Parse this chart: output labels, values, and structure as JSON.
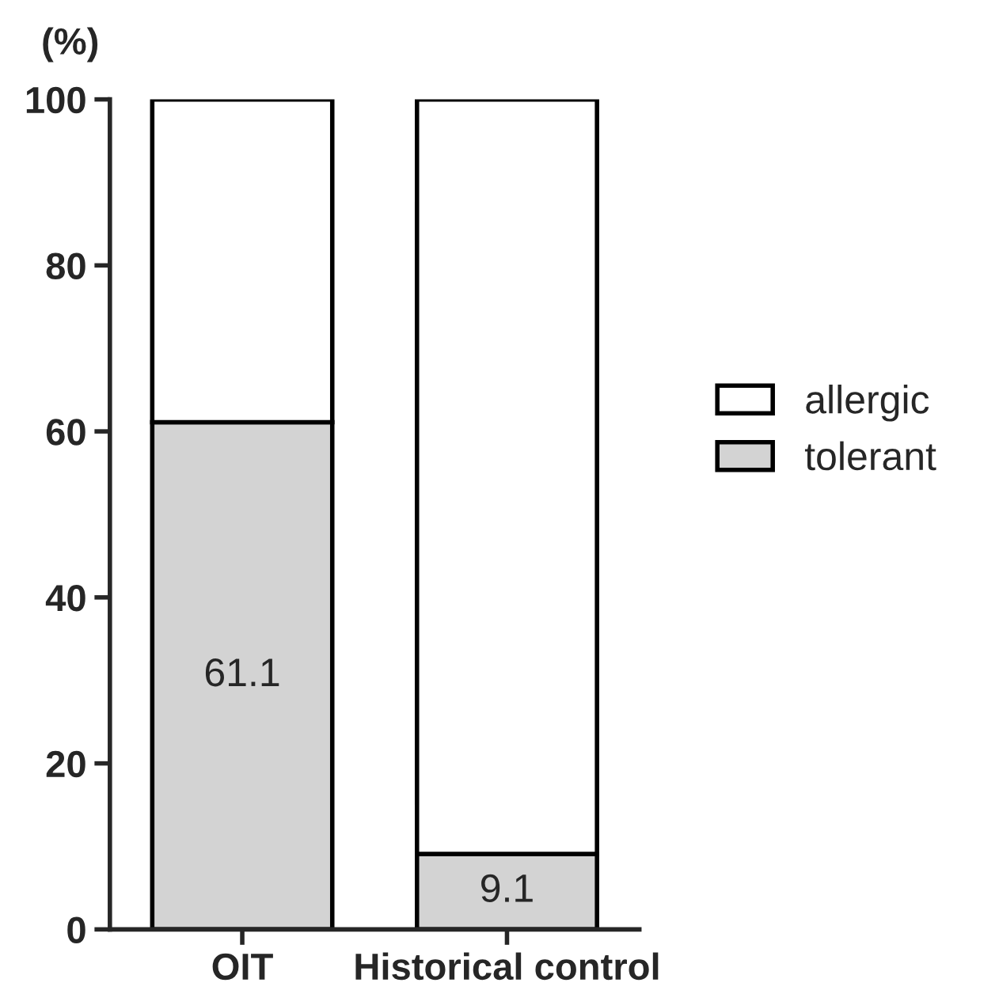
{
  "chart_data": {
    "type": "bar",
    "stacked": true,
    "ylabel": "(%)",
    "categories": [
      "OIT",
      "Historical control"
    ],
    "series": [
      {
        "name": "tolerant",
        "color": "#d3d3d3",
        "values": [
          61.1,
          9.1
        ],
        "value_labels": [
          "61.1",
          "9.1"
        ]
      },
      {
        "name": "allergic",
        "color": "#ffffff",
        "values": [
          38.9,
          90.9
        ]
      }
    ],
    "ylim": [
      0,
      100
    ],
    "yticks": [
      0,
      20,
      40,
      60,
      80,
      100
    ],
    "grid": false,
    "legend": "right"
  }
}
